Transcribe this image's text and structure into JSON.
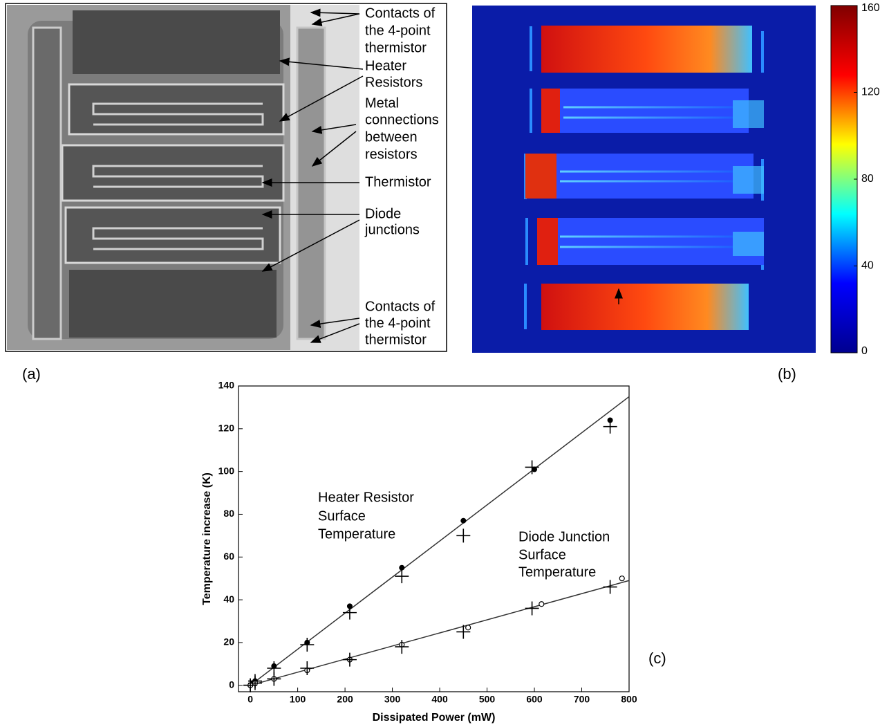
{
  "panel_a": {
    "label": "(a)",
    "annotations": [
      {
        "lines": [
          "Contacts of",
          "the 4-point",
          "thermistor"
        ]
      },
      {
        "lines": [
          "Heater",
          "Resistors"
        ]
      },
      {
        "lines": [
          "Metal",
          "connections",
          "between",
          "resistors"
        ]
      },
      {
        "lines": [
          "Thermistor"
        ]
      },
      {
        "lines": [
          "Diode",
          "junctions"
        ]
      },
      {
        "lines": [
          "Contacts of",
          "the 4-point",
          "thermistor"
        ]
      }
    ]
  },
  "panel_b": {
    "label": "(b)"
  },
  "panel_c": {
    "label": "(c)"
  },
  "chart_data": [
    {
      "type": "colorbar",
      "colors": [
        "#00008f",
        "#0000ff",
        "#00ffff",
        "#ffff00",
        "#ff0000",
        "#800000"
      ],
      "clim": [
        0,
        160
      ],
      "cticks": [
        0,
        40,
        80,
        120,
        160
      ]
    },
    {
      "type": "scatter",
      "x_label": "Dissipated Power (mW)",
      "y_label": "Temperature increase (K)",
      "xlim": [
        -25,
        800
      ],
      "ylim": [
        -3,
        140
      ],
      "xticks": [
        0,
        100,
        200,
        300,
        400,
        500,
        600,
        700,
        800
      ],
      "yticks": [
        0,
        20,
        40,
        60,
        80,
        100,
        120,
        140
      ],
      "annotations": [
        [
          "Heater Resistor",
          "Surface",
          "Temperature"
        ],
        [
          "Diode Junction",
          "Surface",
          "Temperature"
        ]
      ],
      "series": [
        {
          "marker": "line",
          "color": "#333333",
          "x": [
            0,
            800
          ],
          "values": [
            0,
            135
          ]
        },
        {
          "marker": "line",
          "color": "#333333",
          "x": [
            0,
            800
          ],
          "values": [
            0,
            49
          ]
        },
        {
          "marker": "dot",
          "color": "#000000",
          "x": [
            0,
            5,
            10,
            50,
            120,
            210,
            320,
            450,
            600,
            760
          ],
          "values": [
            0,
            1,
            2,
            9,
            20,
            37,
            55,
            77,
            101,
            124
          ]
        },
        {
          "marker": "plus",
          "color": "#000000",
          "x": [
            0,
            10,
            50,
            120,
            210,
            320,
            450,
            595,
            760
          ],
          "values": [
            0,
            2,
            8,
            19,
            34,
            51,
            70,
            102,
            121
          ]
        },
        {
          "marker": "circle",
          "color": "#000000",
          "x": [
            0,
            10,
            50,
            120,
            210,
            320,
            460,
            615,
            785
          ],
          "values": [
            0,
            1,
            3,
            7,
            12,
            19,
            27,
            38,
            50
          ]
        },
        {
          "marker": "plus",
          "color": "#000000",
          "x": [
            0,
            10,
            50,
            120,
            210,
            320,
            450,
            595,
            760
          ],
          "values": [
            0,
            1,
            3,
            8,
            12,
            18,
            25,
            36,
            46
          ]
        }
      ]
    }
  ]
}
